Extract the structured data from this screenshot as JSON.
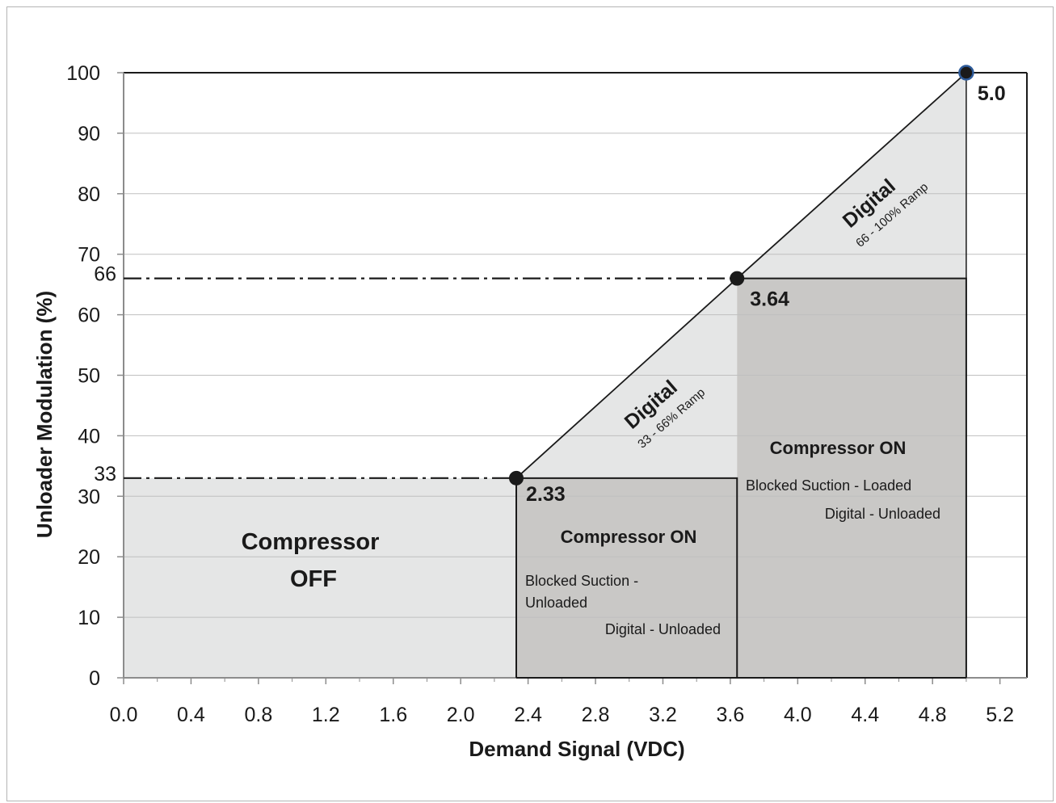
{
  "chart_data": {
    "type": "area",
    "xlabel": "Demand Signal (VDC)",
    "ylabel": "Unloader Modulation (%)",
    "xlim": [
      0,
      5.36
    ],
    "ylim": [
      0,
      100
    ],
    "x_ticks": [
      "0.0",
      "0.4",
      "0.8",
      "1.2",
      "1.6",
      "2.0",
      "2.4",
      "2.8",
      "3.2",
      "3.6",
      "4.0",
      "4.4",
      "4.8",
      "5.2"
    ],
    "y_ticks": [
      "0",
      "10",
      "20",
      "30",
      "40",
      "50",
      "60",
      "70",
      "80",
      "90",
      "100"
    ],
    "y_extra_ticks": [
      "33",
      "66"
    ],
    "grid": true,
    "series": [
      {
        "x": [
          0,
          2.33,
          3.64,
          5.0
        ],
        "y": [
          33,
          33,
          66,
          100
        ]
      }
    ],
    "points": [
      {
        "x": 2.33,
        "y": 33,
        "label": "2.33"
      },
      {
        "x": 3.64,
        "y": 66,
        "label": "3.64"
      },
      {
        "x": 5.0,
        "y": 100,
        "label": "5.0"
      }
    ],
    "reference_lines": [
      {
        "y": 33,
        "x_end": 2.33,
        "style": "dash-dot"
      },
      {
        "y": 66,
        "x_end": 3.64,
        "style": "dash-dot"
      }
    ],
    "regions": {
      "off": {
        "line1": "Compressor",
        "line2": "OFF"
      },
      "on_low": {
        "title": "Compressor ON",
        "line1": "Blocked Suction -",
        "line2": "Unloaded",
        "line3": "Digital - Unloaded"
      },
      "on_high": {
        "title": "Compressor ON",
        "line1": "Blocked Suction - Loaded",
        "line2": "Digital - Unloaded"
      },
      "ramp_low": {
        "title": "Digital",
        "sub": "33 - 66% Ramp"
      },
      "ramp_high": {
        "title": "Digital",
        "sub": "66 - 100% Ramp"
      }
    },
    "colors": {
      "light_fill": "#e5e6e6",
      "dark_fill": "#c9c8c6",
      "grid": "#bfbfbf",
      "line": "#1a1a1a",
      "marker_top": "#2e5b9a"
    }
  }
}
